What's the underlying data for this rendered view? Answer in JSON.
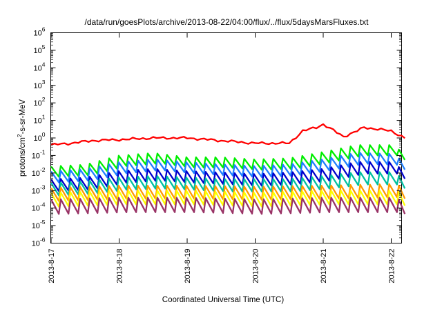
{
  "chart_data": {
    "type": "line",
    "title": "/data/run/goesPlots/archive/2013-08-22/04:00/flux/../flux/5daysMarsFluxes.txt",
    "xlabel": "Coordinated Universal Time (UTC)",
    "ylabel": "protons/cm²-s-sr-MeV",
    "y_scale": "log",
    "ylim_exp": [
      -6,
      6
    ],
    "y_ticks": [
      "10^-6",
      "10^-5",
      "10^-4",
      "10^-3",
      "10^-2",
      "10^-1",
      "10^0",
      "10^1",
      "10^2",
      "10^3",
      "10^4",
      "10^5",
      "10^6"
    ],
    "x_ticks": [
      "2013-8-17",
      "2013-8-18",
      "2013-8-19",
      "2013-8-20",
      "2013-8-21",
      "2013-8-22"
    ],
    "xlim_days": [
      0,
      5.2
    ],
    "grid": false,
    "series": [
      {
        "color": "#ff0000",
        "pattern": "smooth_trend",
        "level_trend": [
          [
            0,
            0.4
          ],
          [
            0.3,
            0.5
          ],
          [
            0.6,
            0.7
          ],
          [
            1.0,
            0.8
          ],
          [
            1.5,
            1.0
          ],
          [
            2.0,
            1.0
          ],
          [
            2.5,
            0.7
          ],
          [
            3.0,
            0.5
          ],
          [
            3.5,
            0.5
          ],
          [
            3.7,
            2.5
          ],
          [
            3.9,
            4.0
          ],
          [
            4.0,
            6.0
          ],
          [
            4.3,
            1.2
          ],
          [
            4.5,
            2.5
          ],
          [
            4.6,
            4.0
          ],
          [
            5.0,
            2.5
          ],
          [
            5.2,
            1.0
          ]
        ]
      },
      {
        "color": "#00ee00",
        "pattern": "sawtooth_decay",
        "level_trend": [
          [
            0,
            0.012
          ],
          [
            0.5,
            0.015
          ],
          [
            1.0,
            0.05
          ],
          [
            1.5,
            0.07
          ],
          [
            2.0,
            0.04
          ],
          [
            2.5,
            0.04
          ],
          [
            3.0,
            0.03
          ],
          [
            3.5,
            0.035
          ],
          [
            4.0,
            0.08
          ],
          [
            4.5,
            0.2
          ],
          [
            5.0,
            0.2
          ],
          [
            5.2,
            0.07
          ]
        ]
      },
      {
        "color": "#1e7fff",
        "pattern": "sawtooth_decay",
        "level_trend": [
          [
            0,
            0.006
          ],
          [
            0.5,
            0.008
          ],
          [
            1.0,
            0.02
          ],
          [
            1.5,
            0.03
          ],
          [
            2.0,
            0.02
          ],
          [
            2.5,
            0.015
          ],
          [
            3.0,
            0.012
          ],
          [
            3.5,
            0.015
          ],
          [
            4.0,
            0.03
          ],
          [
            4.5,
            0.07
          ],
          [
            5.0,
            0.06
          ],
          [
            5.2,
            0.02
          ]
        ]
      },
      {
        "color": "#0000cc",
        "pattern": "sawtooth_decay",
        "level_trend": [
          [
            0,
            0.002
          ],
          [
            0.5,
            0.0025
          ],
          [
            1.0,
            0.006
          ],
          [
            1.5,
            0.008
          ],
          [
            2.0,
            0.006
          ],
          [
            2.5,
            0.005
          ],
          [
            3.0,
            0.004
          ],
          [
            3.5,
            0.005
          ],
          [
            4.0,
            0.008
          ],
          [
            4.5,
            0.02
          ],
          [
            5.0,
            0.02
          ],
          [
            5.2,
            0.006
          ]
        ]
      },
      {
        "color": "#00c0a0",
        "pattern": "sawtooth_decay",
        "level_trend": [
          [
            0,
            0.0012
          ],
          [
            0.5,
            0.0015
          ],
          [
            1.0,
            0.0025
          ],
          [
            1.5,
            0.003
          ],
          [
            2.0,
            0.0025
          ],
          [
            2.5,
            0.002
          ],
          [
            3.0,
            0.002
          ],
          [
            3.5,
            0.002
          ],
          [
            4.0,
            0.003
          ],
          [
            4.5,
            0.005
          ],
          [
            5.0,
            0.005
          ],
          [
            5.2,
            0.002
          ]
        ]
      },
      {
        "color": "#ff9900",
        "pattern": "sawtooth_decay",
        "level_trend": [
          [
            0,
            0.0006
          ],
          [
            1.0,
            0.0008
          ],
          [
            2.0,
            0.0008
          ],
          [
            3.0,
            0.0007
          ],
          [
            4.0,
            0.0008
          ],
          [
            5.0,
            0.001
          ],
          [
            5.2,
            0.0007
          ]
        ]
      },
      {
        "color": "#ffff00",
        "pattern": "sawtooth_decay",
        "level_trend": [
          [
            0,
            0.0003
          ],
          [
            1.0,
            0.0004
          ],
          [
            2.0,
            0.0004
          ],
          [
            3.0,
            0.0003
          ],
          [
            4.0,
            0.0004
          ],
          [
            5.0,
            0.0004
          ],
          [
            5.2,
            0.0003
          ]
        ]
      },
      {
        "color": "#993366",
        "pattern": "sawtooth_decay",
        "level_trend": [
          [
            0,
            0.00012
          ],
          [
            1.0,
            0.00015
          ],
          [
            2.0,
            0.00015
          ],
          [
            3.0,
            0.00012
          ],
          [
            4.0,
            0.00015
          ],
          [
            5.0,
            0.00015
          ],
          [
            5.2,
            0.0001
          ]
        ]
      }
    ]
  }
}
